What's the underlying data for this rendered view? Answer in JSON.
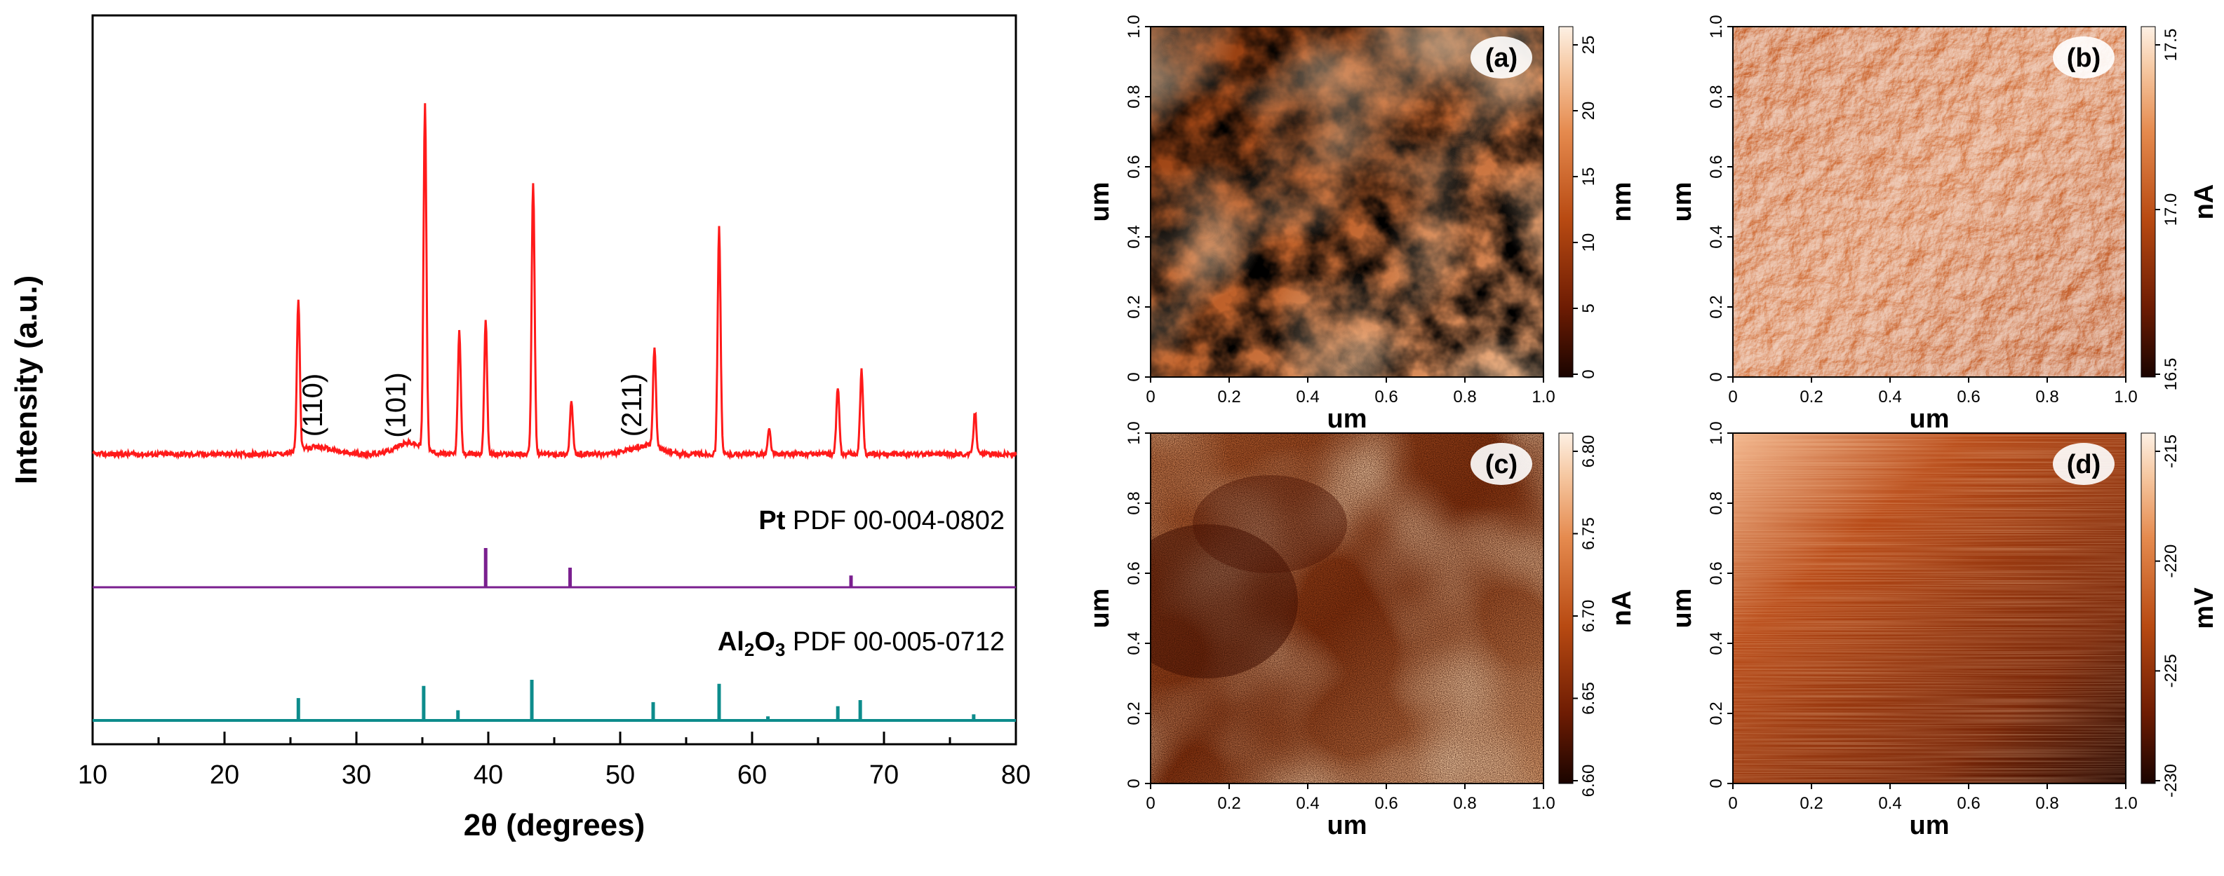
{
  "chart_data": [
    {
      "type": "line",
      "panel": "xrd",
      "xlabel": "2θ (degrees)",
      "ylabel": "Intensity (a.u.)",
      "xlim": [
        10,
        80
      ],
      "xticks": [
        10,
        20,
        30,
        40,
        50,
        60,
        70,
        80
      ],
      "colors": {
        "sample": "#ff1a1a",
        "pt": "#7a1f8f",
        "al2o3": "#0d8c8c"
      },
      "sample_peaks": [
        {
          "x": 25.6,
          "h": 0.43
        },
        {
          "x": 35.2,
          "h": 0.98
        },
        {
          "x": 37.8,
          "h": 0.35
        },
        {
          "x": 39.8,
          "h": 0.38
        },
        {
          "x": 43.4,
          "h": 0.78
        },
        {
          "x": 46.3,
          "h": 0.15
        },
        {
          "x": 52.6,
          "h": 0.29
        },
        {
          "x": 57.5,
          "h": 0.65
        },
        {
          "x": 61.3,
          "h": 0.07
        },
        {
          "x": 66.5,
          "h": 0.19
        },
        {
          "x": 68.3,
          "h": 0.24
        },
        {
          "x": 76.9,
          "h": 0.12
        }
      ],
      "annotations": [
        {
          "text": "(110)",
          "x": 27.4
        },
        {
          "text": "(101)",
          "x": 33.7
        },
        {
          "text": "(211)",
          "x": 51.6
        }
      ],
      "reference_pt": {
        "name": "Pt",
        "label": "PDF 00-004-0802",
        "peaks": [
          {
            "x": 39.8,
            "h": 1.0
          },
          {
            "x": 46.2,
            "h": 0.5
          },
          {
            "x": 67.5,
            "h": 0.3
          }
        ]
      },
      "reference_al2o3": {
        "name": "Al",
        "sub2": "2",
        "name_o": "O",
        "sub3": "3",
        "label": "PDF 00-005-0712",
        "peaks": [
          {
            "x": 25.6,
            "h": 0.55
          },
          {
            "x": 35.1,
            "h": 0.85
          },
          {
            "x": 37.7,
            "h": 0.25
          },
          {
            "x": 43.3,
            "h": 1.0
          },
          {
            "x": 52.5,
            "h": 0.45
          },
          {
            "x": 57.5,
            "h": 0.9
          },
          {
            "x": 61.2,
            "h": 0.1
          },
          {
            "x": 66.5,
            "h": 0.35
          },
          {
            "x": 68.2,
            "h": 0.5
          },
          {
            "x": 76.8,
            "h": 0.15
          }
        ]
      }
    },
    {
      "type": "heatmap",
      "panel": "(a)",
      "xlabel": "um",
      "ylabel": "um",
      "xticks": [
        "0",
        "0.2",
        "0.4",
        "0.6",
        "0.8",
        "1.0"
      ],
      "yticks": [
        "0",
        "0.2",
        "0.4",
        "0.6",
        "0.8",
        "1.0"
      ],
      "colorbar_label": "nm",
      "colorbar_ticks": [
        "0",
        "5",
        "10",
        "15",
        "20",
        "25"
      ],
      "pattern": "grains"
    },
    {
      "type": "heatmap",
      "panel": "(b)",
      "xlabel": "um",
      "ylabel": "um",
      "xticks": [
        "0",
        "0.2",
        "0.4",
        "0.6",
        "0.8",
        "1.0"
      ],
      "yticks": [
        "0",
        "0.2",
        "0.4",
        "0.6",
        "0.8",
        "1.0"
      ],
      "colorbar_label": "nA",
      "colorbar_ticks": [
        "16.5",
        "17.0",
        "17.5"
      ],
      "pattern": "shaded"
    },
    {
      "type": "heatmap",
      "panel": "(c)",
      "xlabel": "um",
      "ylabel": "um",
      "xticks": [
        "0",
        "0.2",
        "0.4",
        "0.6",
        "0.8",
        "1.0"
      ],
      "yticks": [
        "0",
        "0.2",
        "0.4",
        "0.6",
        "0.8",
        "1.0"
      ],
      "colorbar_label": "nA",
      "colorbar_ticks": [
        "6.60",
        "6.65",
        "6.70",
        "6.75",
        "6.80"
      ],
      "pattern": "noisy"
    },
    {
      "type": "heatmap",
      "panel": "(d)",
      "xlabel": "um",
      "ylabel": "um",
      "xticks": [
        "0",
        "0.2",
        "0.4",
        "0.6",
        "0.8",
        "1.0"
      ],
      "yticks": [
        "0",
        "0.2",
        "0.4",
        "0.6",
        "0.8",
        "1.0"
      ],
      "colorbar_label": "mV",
      "colorbar_ticks": [
        "-230",
        "-225",
        "-220",
        "-215"
      ],
      "pattern": "gradient"
    }
  ]
}
